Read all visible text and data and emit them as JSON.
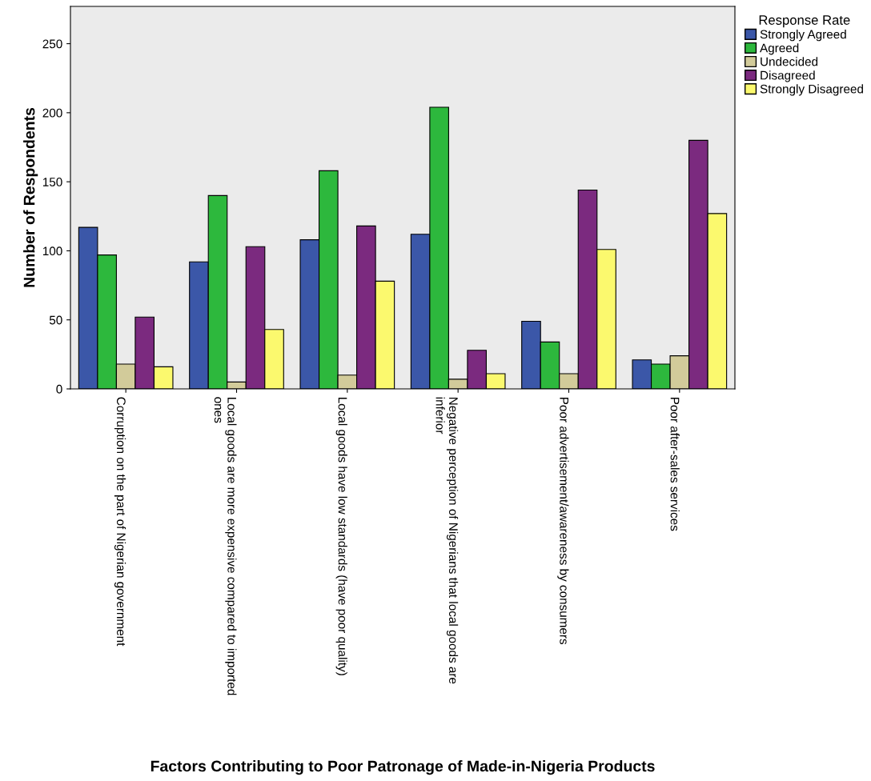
{
  "chart_data": {
    "type": "bar",
    "xlabel": "Factors Contributing to Poor Patronage of Made-in-Nigeria Products",
    "ylabel": "Number of Respondents",
    "legend_title": "Response Rate",
    "legend": "top right",
    "grid": false,
    "categories": [
      "Corruption on the part of Nigerian government",
      "Local goods are more expensive compared to imported\nones",
      "Local goods have low standards (have poor quality)",
      "Negative perception of Nigerians that local goods are\ninferior",
      "Poor advertisement/awareness by consumers",
      "Poor after-sales services"
    ],
    "series": [
      {
        "name": "Strongly Agreed",
        "color": "#3b57a8",
        "values": [
          117,
          92,
          108,
          112,
          49,
          21
        ]
      },
      {
        "name": "Agreed",
        "color": "#2db83d",
        "values": [
          97,
          140,
          158,
          204,
          34,
          18
        ]
      },
      {
        "name": "Undecided",
        "color": "#d2cb9a",
        "values": [
          18,
          5,
          10,
          7,
          11,
          24
        ]
      },
      {
        "name": "Disagreed",
        "color": "#7b2a7f",
        "values": [
          52,
          103,
          118,
          28,
          144,
          180
        ]
      },
      {
        "name": "Strongly Disagreed",
        "color": "#fbf96e",
        "values": [
          16,
          43,
          78,
          11,
          101,
          127
        ]
      }
    ],
    "ylim": [
      0,
      277
    ],
    "yticks": [
      0,
      50,
      100,
      150,
      200,
      250
    ]
  }
}
